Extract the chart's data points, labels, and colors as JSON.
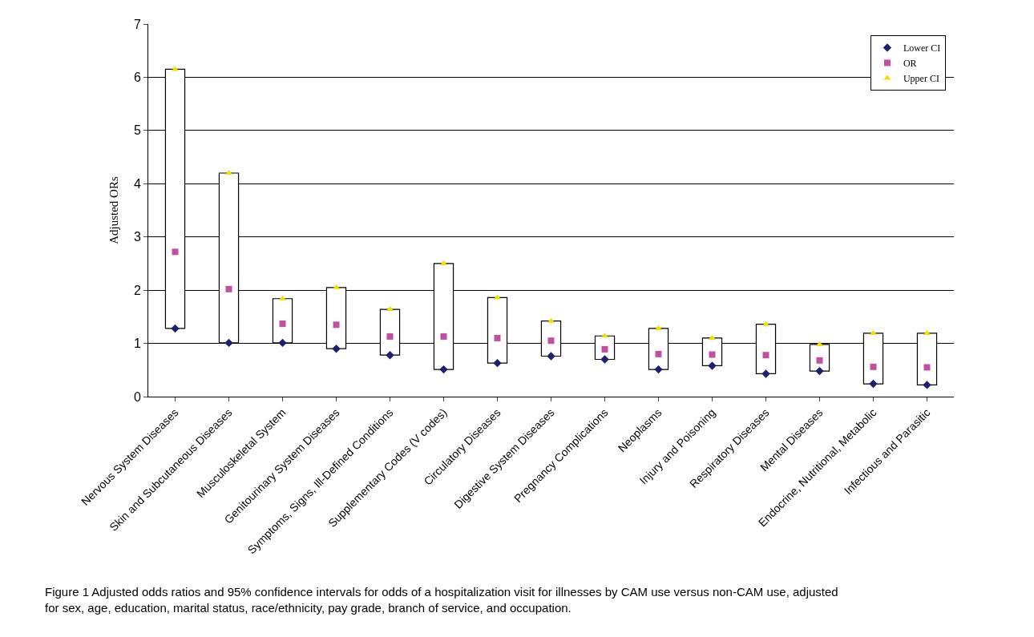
{
  "chart_data": {
    "type": "scatter",
    "ylabel": "Adjusted ORs",
    "categories": [
      "Nervous System Diseases",
      "Skin and Subcutaneous Diseases",
      "Musculoskeletal System",
      "Genitourinary System Diseases",
      "Symptoms, Signs, Ill-Defined Conditions",
      "Supplementary Codes (V codes)",
      "Circulatory Diseases",
      "Digestive System Diseases",
      "Pregnancy Complications",
      "Neoplasms",
      "Injury and Poisoning",
      "Respiratory Diseases",
      "Mental Diseases",
      "Endocrine, Nutritional, Metabolic",
      "Infectious and Parasitic"
    ],
    "series": [
      {
        "type": "bar",
        "color": "#ffffff",
        "base": [
          1.28,
          1.01,
          1.01,
          0.9,
          0.78,
          0.51,
          0.63,
          0.76,
          0.7,
          0.51,
          0.58,
          0.43,
          0.48,
          0.24,
          0.22
        ],
        "values": [
          4.87,
          3.19,
          0.83,
          1.15,
          0.86,
          1.99,
          1.23,
          0.66,
          0.44,
          0.77,
          0.52,
          0.93,
          0.5,
          0.95,
          0.97
        ]
      },
      {
        "name": "Lower CI",
        "color": "#1f1f6e",
        "marker": "diamond",
        "values": [
          1.28,
          1.01,
          1.01,
          0.9,
          0.78,
          0.51,
          0.63,
          0.76,
          0.7,
          0.51,
          0.58,
          0.43,
          0.48,
          0.24,
          0.22
        ]
      },
      {
        "name": "OR",
        "color": "#c050a0",
        "marker": "square",
        "values": [
          2.72,
          2.02,
          1.37,
          1.35,
          1.13,
          1.13,
          1.1,
          1.05,
          0.89,
          0.8,
          0.79,
          0.78,
          0.68,
          0.56,
          0.55
        ]
      },
      {
        "name": "Upper CI",
        "color": "#f0e000",
        "marker": "triangle",
        "values": [
          6.15,
          4.2,
          1.84,
          2.05,
          1.64,
          2.5,
          1.86,
          1.42,
          1.14,
          1.28,
          1.1,
          1.36,
          0.98,
          1.19,
          1.19
        ]
      }
    ],
    "ylim": [
      0,
      7
    ],
    "yticks": [
      0,
      1,
      2,
      3,
      4,
      5,
      6,
      7
    ],
    "grid": "y",
    "legend": "top right",
    "annotations": [
      "Figure 1 Adjusted odds ratios and 95% confidence intervals for odds of a hospitalization visit for illnesses by CAM use versus non-CAM use, adjusted for sex, age, education, marital status, race/ethnicity, pay grade, branch of service, and occupation."
    ]
  }
}
